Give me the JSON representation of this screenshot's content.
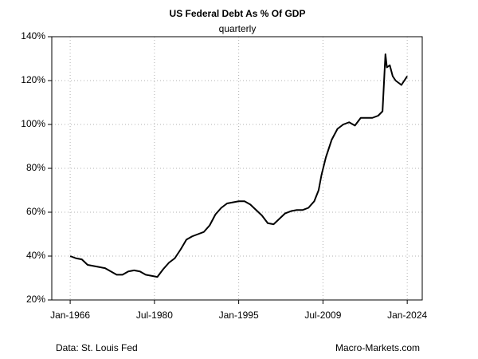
{
  "chart_data": {
    "type": "line",
    "title": "US Federal Debt As % Of GDP",
    "subtitle": "quarterly",
    "source": "Data: St. Louis Fed",
    "credit": "Macro-Markets.com",
    "x": [
      "1966-01",
      "1967-01",
      "1968-01",
      "1969-01",
      "1970-01",
      "1971-01",
      "1972-01",
      "1973-01",
      "1974-01",
      "1975-01",
      "1976-01",
      "1977-01",
      "1978-01",
      "1979-01",
      "1980-01",
      "1981-01",
      "1982-01",
      "1983-01",
      "1984-01",
      "1985-01",
      "1986-01",
      "1987-01",
      "1988-01",
      "1989-01",
      "1990-01",
      "1991-01",
      "1992-01",
      "1993-01",
      "1994-01",
      "1995-01",
      "1996-01",
      "1997-01",
      "1998-01",
      "1999-01",
      "2000-01",
      "2001-01",
      "2002-01",
      "2003-01",
      "2004-01",
      "2005-01",
      "2006-01",
      "2007-01",
      "2008-01",
      "2008-10",
      "2009-04",
      "2010-01",
      "2011-01",
      "2012-01",
      "2013-01",
      "2014-01",
      "2015-01",
      "2016-01",
      "2017-01",
      "2018-01",
      "2019-01",
      "2019-10",
      "2020-04",
      "2020-07",
      "2021-01",
      "2021-07",
      "2022-01",
      "2022-07",
      "2023-01",
      "2023-07",
      "2024-01"
    ],
    "series": [
      {
        "name": "US Federal Debt As % Of GDP",
        "color": "#000000",
        "values": [
          40,
          39,
          38.5,
          36,
          35.5,
          35,
          34.5,
          33,
          31.5,
          31.5,
          33,
          33.5,
          33,
          31.5,
          31,
          30.5,
          34,
          37,
          39,
          43,
          47.5,
          49,
          50,
          51,
          54,
          59,
          62,
          64,
          64.5,
          65,
          65,
          63.5,
          61,
          58.5,
          55,
          54.5,
          57,
          59.5,
          60.5,
          61,
          61,
          62,
          65,
          70,
          77,
          85,
          93,
          98,
          100,
          101,
          99.5,
          103,
          103,
          103,
          104,
          106,
          132,
          126,
          127,
          122,
          120,
          119,
          118,
          120,
          122
        ]
      }
    ],
    "xlim": [
      "1962-11",
      "2026-08"
    ],
    "xticks": [
      {
        "value": "1966-01",
        "label": "Jan-1966"
      },
      {
        "value": "1980-07",
        "label": "Jul-1980"
      },
      {
        "value": "1995-01",
        "label": "Jan-1995"
      },
      {
        "value": "2009-07",
        "label": "Jul-2009"
      },
      {
        "value": "2024-01",
        "label": "Jan-2024"
      }
    ],
    "ylim": [
      20,
      140
    ],
    "yticks": [
      {
        "value": 20,
        "label": "20%"
      },
      {
        "value": 40,
        "label": "40%"
      },
      {
        "value": 60,
        "label": "60%"
      },
      {
        "value": 80,
        "label": "80%"
      },
      {
        "value": 100,
        "label": "100%"
      },
      {
        "value": 120,
        "label": "120%"
      },
      {
        "value": 140,
        "label": "140%"
      }
    ],
    "grid": true
  }
}
